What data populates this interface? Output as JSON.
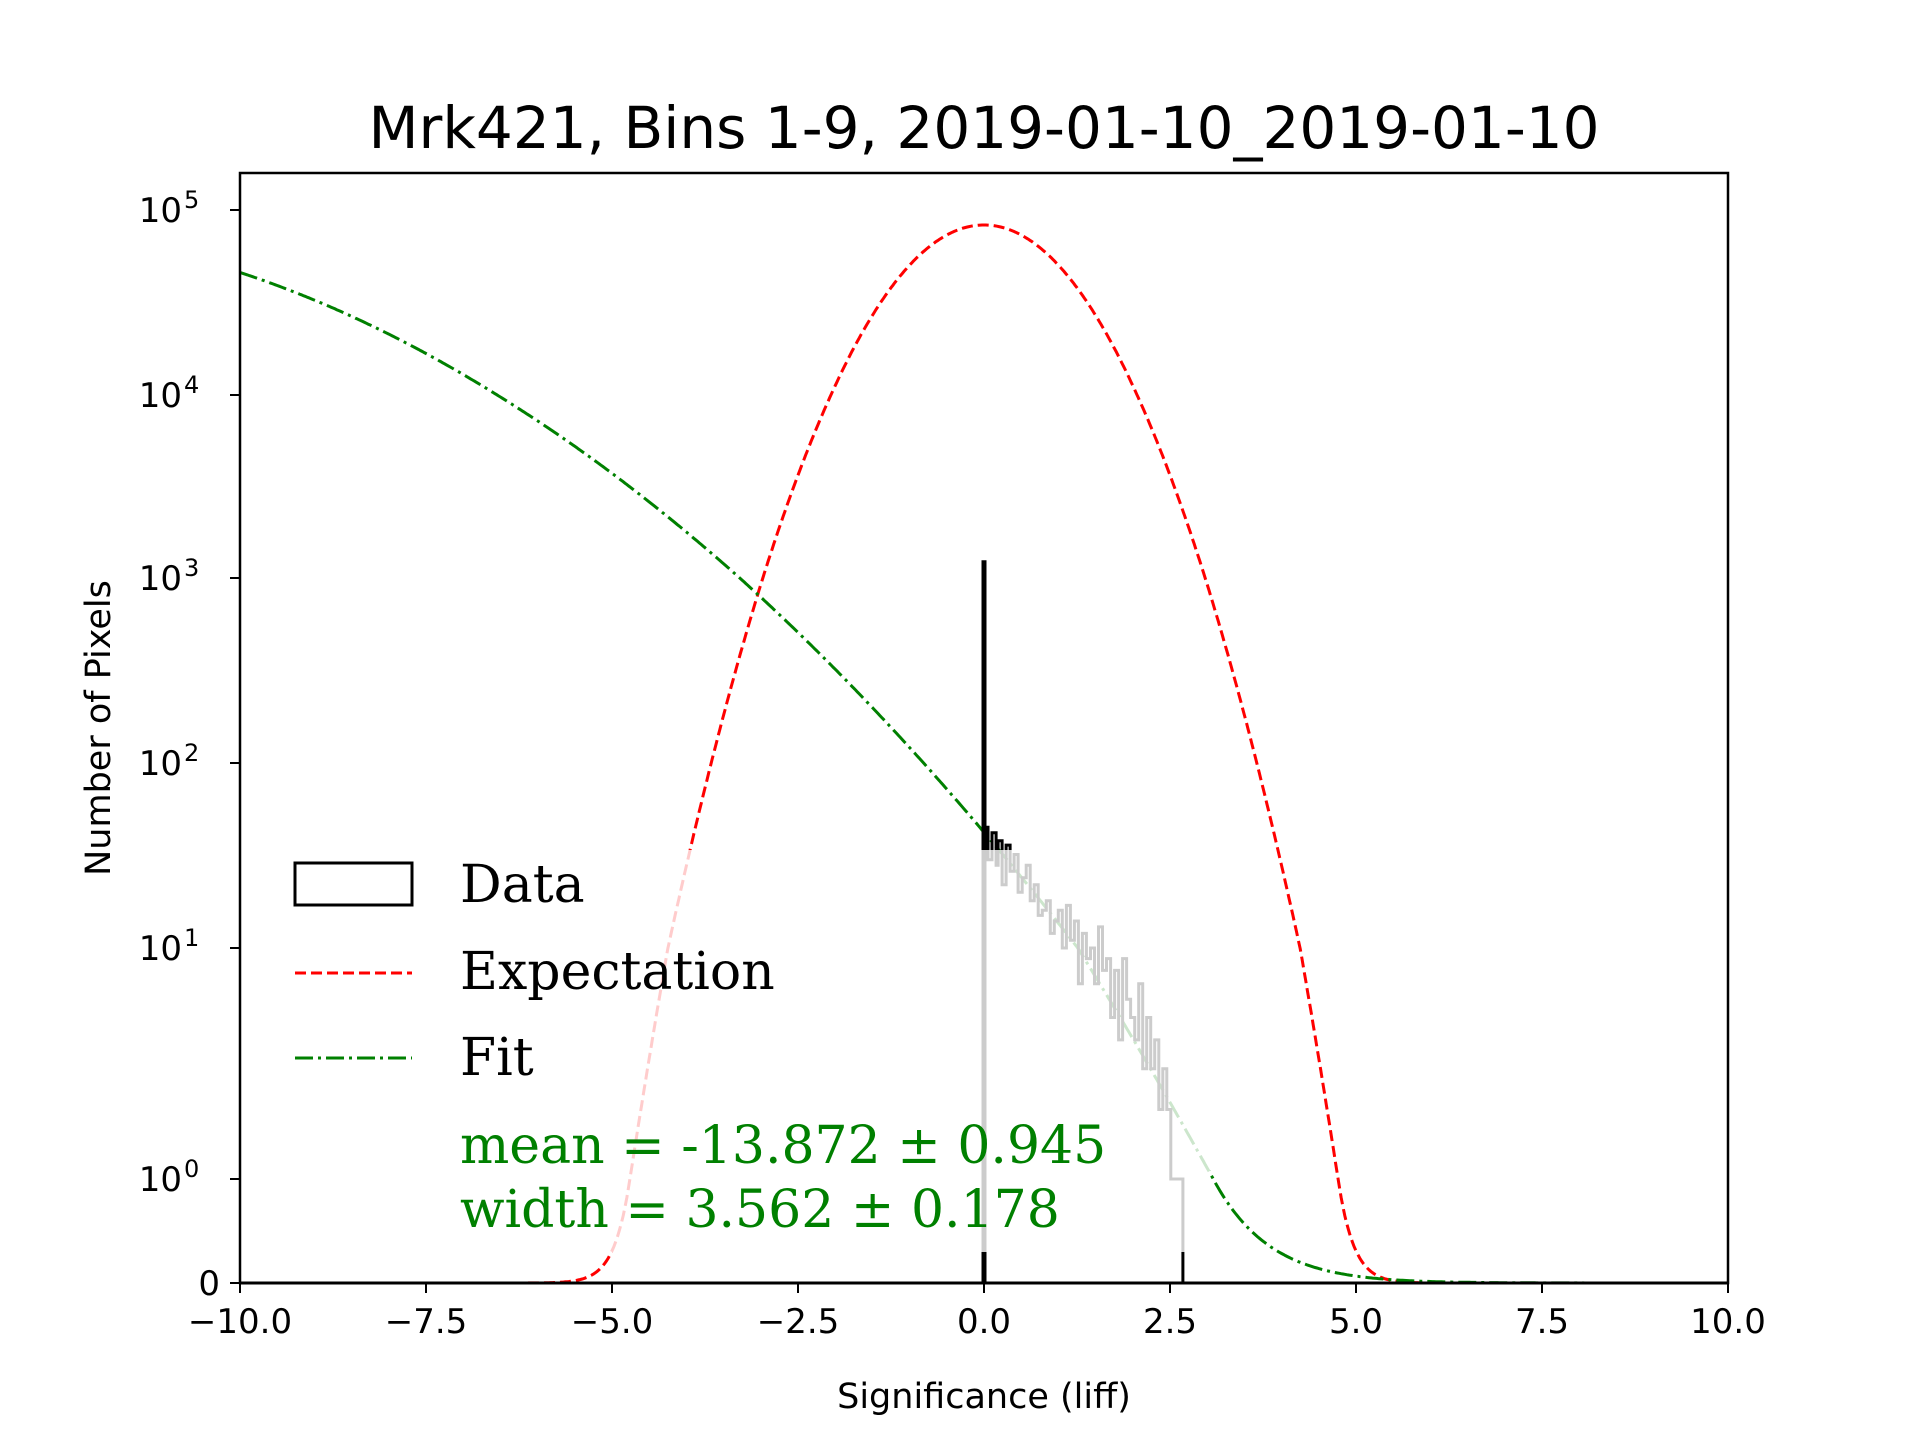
{
  "chart_data": {
    "type": "line",
    "title": "Mrk421, Bins 1-9, 2019-01-10_2019-01-10",
    "xlabel": "Significance (liff)",
    "ylabel": "Number of Pixels",
    "xlim": [
      -10,
      10
    ],
    "yscale": "symlog",
    "ylim": [
      0,
      140000
    ],
    "grid": false,
    "xticks": [
      {
        "value": -10.0,
        "label": "−10.0"
      },
      {
        "value": -7.5,
        "label": "−7.5"
      },
      {
        "value": -5.0,
        "label": "−5.0"
      },
      {
        "value": -2.5,
        "label": "−2.5"
      },
      {
        "value": 0.0,
        "label": "0.0"
      },
      {
        "value": 2.5,
        "label": "2.5"
      },
      {
        "value": 5.0,
        "label": "5.0"
      },
      {
        "value": 7.5,
        "label": "7.5"
      },
      {
        "value": 10.0,
        "label": "10.0"
      }
    ],
    "yticks": [
      {
        "value": 0,
        "base": "0",
        "exp": ""
      },
      {
        "value": 1,
        "base": "10",
        "exp": "0"
      },
      {
        "value": 10,
        "base": "10",
        "exp": "1"
      },
      {
        "value": 100,
        "base": "10",
        "exp": "2"
      },
      {
        "value": 1000,
        "base": "10",
        "exp": "3"
      },
      {
        "value": 10000,
        "base": "10",
        "exp": "4"
      },
      {
        "value": 100000,
        "base": "10",
        "exp": "5"
      }
    ],
    "legend": {
      "placement": "lower-left",
      "entries": [
        {
          "label": "Data",
          "style": "box",
          "color": "#000000"
        },
        {
          "label": "Expectation",
          "style": "dashed",
          "color": "#ff0000"
        },
        {
          "label": "Fit",
          "style": "dashdot",
          "color": "#008000"
        }
      ]
    },
    "annotation": {
      "color": "#008000",
      "lines": [
        "mean = -13.872 ± 0.945",
        "width = 3.562 ± 0.178"
      ]
    },
    "series": [
      {
        "name": "Expectation",
        "kind": "gaussian",
        "color": "#ff0000",
        "amplitude": 83000,
        "mean": 0.0,
        "width": 1.0
      },
      {
        "name": "Fit",
        "kind": "gaussian",
        "color": "#008000",
        "amplitude": 83000,
        "mean": -13.872,
        "width": 3.562
      },
      {
        "name": "Data",
        "kind": "histogram",
        "color": "#000000",
        "bin_width": 0.027,
        "bin_start": 0.0,
        "spike": {
          "x": 0.0,
          "value": 1250
        },
        "values": [
          45,
          45,
          30,
          30,
          42,
          42,
          28,
          38,
          38,
          22,
          22,
          36,
          36,
          26,
          26,
          32,
          32,
          20,
          20,
          24,
          24,
          28,
          28,
          18,
          18,
          22,
          22,
          15,
          15,
          16,
          16,
          18,
          18,
          12,
          12,
          14,
          14,
          16,
          16,
          10,
          10,
          17,
          17,
          11,
          11,
          14,
          14,
          7,
          7,
          12,
          12,
          9,
          9,
          10,
          10,
          7,
          7,
          13,
          13,
          8,
          8,
          9,
          9,
          5,
          5,
          8,
          8,
          4,
          4,
          9,
          9,
          6,
          6,
          5,
          5,
          4,
          4,
          7,
          7,
          3,
          3,
          5,
          5,
          3,
          3,
          4,
          4,
          2,
          2,
          3,
          3,
          2,
          2,
          1,
          1,
          1,
          1,
          1,
          1
        ]
      }
    ]
  }
}
